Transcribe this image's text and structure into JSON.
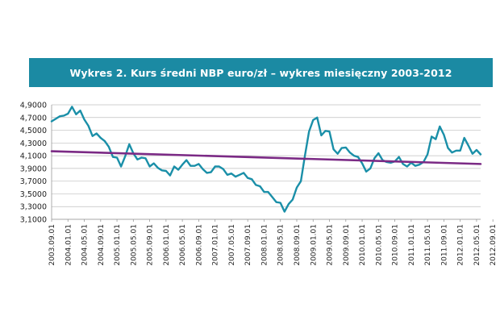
{
  "title": "Wykres 2. Kurs średni NBP euro/zł – wykres miesięczny 2003-2012",
  "colors": {
    "title_bg": "#1b8aa3",
    "title_text": "#ffffff",
    "series_line": "#1a8fa8",
    "trend_line": "#7b2a85",
    "grid": "#bfbfbf",
    "axis": "#9a9a9a"
  },
  "chart_data": {
    "type": "line",
    "title": "Wykres 2. Kurs średni NBP euro/zł – wykres miesięczny 2003-2012",
    "xlabel": "",
    "ylabel": "",
    "ylim": [
      3.1,
      4.9
    ],
    "grid": "horizontal",
    "legend": "none",
    "y_ticks": [
      "4,9000",
      "4,7000",
      "4,5000",
      "4,3000",
      "4,1000",
      "3,9000",
      "3,7000",
      "3,5000",
      "3,3000",
      "3,1000"
    ],
    "x_tick_labels": [
      "2003.09.01",
      "2004.01.01",
      "2004.05.01",
      "2004.09.01",
      "2005.01.01",
      "2005.05.01",
      "2005.09.01",
      "2006.01.01",
      "2006.05.01",
      "2006.09.01",
      "2007.01.01",
      "2007.05.01",
      "2007.09.01",
      "2008.01.01",
      "2008.05.01",
      "2008.09.01",
      "2009.01.01",
      "2009.05.01",
      "2009.09.01",
      "2010.01.01",
      "2010.05.01",
      "2010.09.01",
      "2011.01.01",
      "2011.05.01",
      "2011.09.01",
      "2012.01.01",
      "2012.05.01",
      "2012.09.01"
    ],
    "series": [
      {
        "values": [
          4.64,
          4.68,
          4.72,
          4.73,
          4.76,
          4.87,
          4.75,
          4.81,
          4.67,
          4.57,
          4.41,
          4.45,
          4.38,
          4.33,
          4.24,
          4.08,
          4.07,
          3.93,
          4.09,
          4.28,
          4.14,
          4.04,
          4.07,
          4.06,
          3.93,
          3.98,
          3.91,
          3.87,
          3.86,
          3.79,
          3.93,
          3.88,
          3.96,
          4.03,
          3.94,
          3.94,
          3.97,
          3.89,
          3.83,
          3.84,
          3.93,
          3.93,
          3.89,
          3.8,
          3.82,
          3.77,
          3.8,
          3.83,
          3.75,
          3.73,
          3.64,
          3.62,
          3.53,
          3.53,
          3.45,
          3.37,
          3.36,
          3.22,
          3.34,
          3.41,
          3.6,
          3.7,
          4.1,
          4.48,
          4.66,
          4.7,
          4.42,
          4.49,
          4.48,
          4.2,
          4.13,
          4.22,
          4.23,
          4.15,
          4.1,
          4.08,
          3.98,
          3.85,
          3.9,
          4.06,
          4.14,
          4.03,
          4.0,
          3.99,
          4.01,
          4.08,
          3.97,
          3.93,
          3.99,
          3.94,
          3.96,
          4.0,
          4.12,
          4.4,
          4.36,
          4.56,
          4.43,
          4.22,
          4.15,
          4.18,
          4.18,
          4.38,
          4.26,
          4.13,
          4.19,
          4.12
        ]
      },
      {
        "values": [
          4.17,
          3.97
        ]
      }
    ]
  }
}
